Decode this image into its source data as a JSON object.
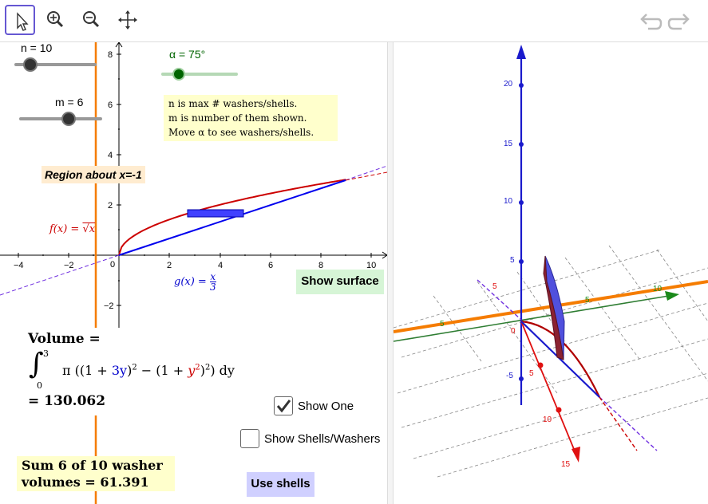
{
  "toolbar": {
    "tools": [
      "move-tool",
      "zoom-in-tool",
      "zoom-out-tool",
      "move-graphics-tool"
    ],
    "undo_icon": "undo-icon",
    "redo_icon": "redo-icon"
  },
  "sliders": {
    "n": {
      "label": "n = 10",
      "value": 10
    },
    "m": {
      "label": "m = 6",
      "value": 6
    },
    "alpha": {
      "label": "α = 75°",
      "value": 75,
      "color": "#006400"
    }
  },
  "info_text": [
    "n is max # washers/shells.",
    "m is number of them shown.",
    "Move α to see washers/shells."
  ],
  "region_label": "Region about x=-1",
  "f_label": {
    "name": "f(x) = ",
    "expr": "√x",
    "color": "#cc0000"
  },
  "g_label": {
    "name": "g(x) = ",
    "num": "x",
    "den": "3",
    "color": "#0000cc"
  },
  "axes2d": {
    "x_ticks": [
      "−4",
      "−2",
      "0",
      "2",
      "4",
      "6",
      "8",
      "10"
    ],
    "y_ticks": [
      "8",
      "6",
      "4",
      "2",
      "−2"
    ]
  },
  "volume": {
    "title": "Volume  =",
    "upper": "3",
    "lower": "0",
    "pi": "π",
    "part1": "((1 + ",
    "blue": "3y",
    "part2": ")",
    "sq": "2",
    "part3": " − (1 + ",
    "red": "y",
    "redsup": "2",
    "part4": ")",
    "sq2": "2",
    "part5": ") dy",
    "result": "= 130.062"
  },
  "sum_box": {
    "line1": "Sum 6 of 10 washer",
    "line2": "volumes  =  61.391"
  },
  "buttons": {
    "show_surface": "Show surface",
    "use_shells": "Use shells"
  },
  "checkboxes": {
    "show_one": {
      "label": "Show One",
      "checked": true
    },
    "show_shells": {
      "label": "Show Shells/Washers",
      "checked": false
    }
  },
  "axes3d": {
    "z_ticks": [
      "20",
      "15",
      "10",
      "5",
      "-5"
    ],
    "x_ticks": [
      "5",
      "10",
      "15",
      "0",
      "5"
    ],
    "y_ticks": [
      "5",
      "5",
      "10"
    ]
  },
  "colors": {
    "accent": "#6557d2",
    "orange": "#f57c00",
    "f_red": "#cc0000",
    "g_blue": "#0000cc",
    "green": "#2e7d32",
    "yellow_box": "#ffffcc",
    "region_box": "#ffecd0",
    "surface_btn": "#d6f5d6",
    "shells_btn": "#d0d0ff"
  }
}
